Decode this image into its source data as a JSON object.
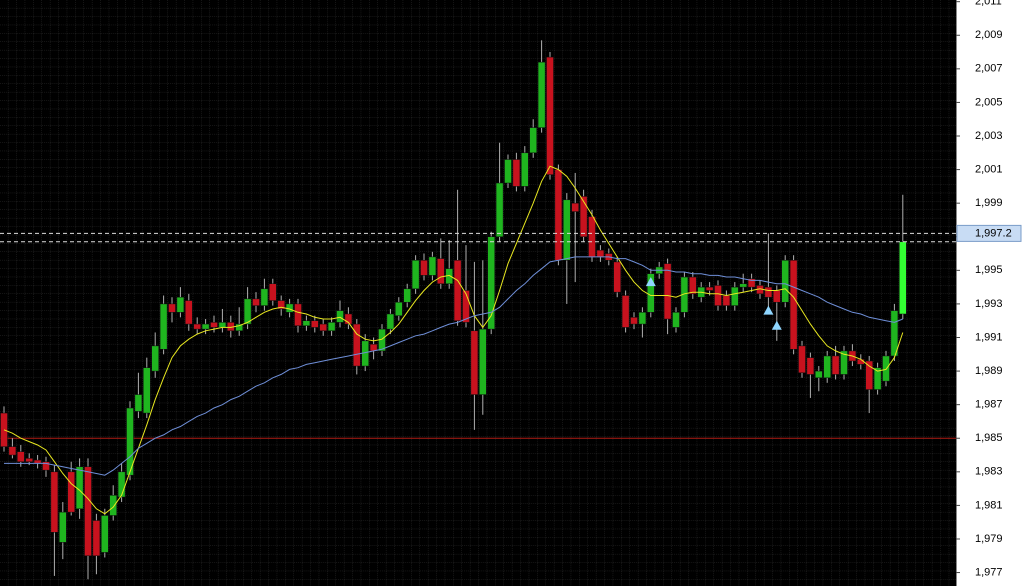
{
  "chart_data": {
    "type": "candlestick",
    "up_color": "#1fb51f",
    "down_color": "#c8121e",
    "last_color": "#33ff33",
    "wick_color": "#b0b0b0",
    "ylim": [
      1976.2,
      2011.1
    ],
    "yticks": [
      {
        "value": 1977,
        "label": "1,977"
      },
      {
        "value": 1979,
        "label": "1,979"
      },
      {
        "value": 1981,
        "label": "1,981"
      },
      {
        "value": 1983,
        "label": "1,983"
      },
      {
        "value": 1985,
        "label": "1,985"
      },
      {
        "value": 1987,
        "label": "1,987"
      },
      {
        "value": 1989,
        "label": "1,989"
      },
      {
        "value": 1991,
        "label": "1,991"
      },
      {
        "value": 1993,
        "label": "1,993"
      },
      {
        "value": 1995,
        "label": "1,995"
      },
      {
        "value": 1997,
        "label": "1,997"
      },
      {
        "value": 1999,
        "label": "1,999"
      },
      {
        "value": 2001,
        "label": "2,001"
      },
      {
        "value": 2003,
        "label": "2,003"
      },
      {
        "value": 2005,
        "label": "2,005"
      },
      {
        "value": 2007,
        "label": "2,007"
      },
      {
        "value": 2009,
        "label": "2,009"
      },
      {
        "value": 2011,
        "label": "2,011"
      }
    ],
    "open": [
      1986.5,
      1984.5,
      1984.2,
      1983.8,
      1983.7,
      1983.6,
      1983.0,
      1978.8,
      1983.0,
      1980.8,
      1983.3,
      1980.1,
      1978.2,
      1980.4,
      1981.5,
      1982.8,
      1986.6,
      1986.5,
      1989.0,
      1990.3,
      1993.0,
      1992.5,
      1993.2,
      1991.8,
      1991.5,
      1991.9,
      1991.6,
      1991.9,
      1991.4,
      1991.8,
      1993.3,
      1992.9,
      1994.2,
      1993.2,
      1992.5,
      1993.0,
      1991.7,
      1992.0,
      1991.8,
      1991.4,
      1991.9,
      1992.4,
      1991.8,
      1989.3,
      1990.6,
      1990.2,
      1991.5,
      1992.3,
      1993.1,
      1993.9,
      1995.6,
      1994.7,
      1995.7,
      1994.2,
      1995.6,
      1993.8,
      1991.4,
      1987.6,
      1991.5,
      1997.0,
      2000.2,
      2001.6,
      2000.0,
      2002.0,
      2003.5,
      2007.7,
      2001.0,
      1995.6,
      1999.0,
      1999.4,
      1998.2,
      1996.2,
      1996.0,
      1995.5,
      1993.5,
      1992.2,
      1991.8,
      1992.5,
      1994.8,
      1995.4,
      1991.6,
      1992.5,
      1994.6,
      1993.4,
      1994.0,
      1994.1,
      1993.5,
      1992.9,
      1994.0,
      1994.5,
      1994.1,
      1994.0,
      1993.8,
      1993.1,
      1995.6,
      1990.5,
      1989.8,
      1988.6,
      1988.6,
      1989.9,
      1988.8,
      1990.2,
      1989.7,
      1989.6,
      1987.9,
      1988.4,
      1989.9,
      1992.4
    ],
    "high": [
      1986.9,
      1985.0,
      1984.6,
      1984.1,
      1984.0,
      1983.9,
      1983.4,
      1981.2,
      1983.6,
      1983.8,
      1983.8,
      1980.5,
      1980.8,
      1982.2,
      1983.5,
      1987.2,
      1988.9,
      1989.8,
      1991.3,
      1993.5,
      1993.4,
      1994.0,
      1993.6,
      1992.2,
      1992.1,
      1992.3,
      1992.7,
      1992.3,
      1992.8,
      1994.0,
      1993.7,
      1994.5,
      1994.5,
      1993.5,
      1993.3,
      1993.3,
      1992.3,
      1992.3,
      1992.1,
      1992.2,
      1993.2,
      1992.8,
      1992.1,
      1991.2,
      1991.0,
      1991.8,
      1992.7,
      1993.4,
      1994.2,
      1995.9,
      1996.0,
      1996.1,
      1996.9,
      1996.8,
      1999.8,
      1996.5,
      1995.5,
      1995.6,
      1997.3,
      2002.6,
      2001.9,
      2002.0,
      2002.4,
      2004.0,
      2008.7,
      2008.0,
      2001.3,
      1999.6,
      2000.8,
      1999.8,
      1998.6,
      1996.5,
      1996.3,
      1995.8,
      1993.8,
      1992.5,
      1992.8,
      1995.1,
      1995.5,
      1995.7,
      1992.8,
      1994.9,
      1994.9,
      1994.3,
      1994.3,
      1994.4,
      1993.8,
      1994.3,
      1994.8,
      1994.8,
      1994.4,
      1997.2,
      1994.1,
      1995.9,
      1995.9,
      1990.8,
      1990.1,
      1989.3,
      1990.2,
      1990.5,
      1990.5,
      1990.6,
      1990.0,
      1989.9,
      1989.5,
      1990.2,
      1993.0,
      1999.5
    ],
    "low": [
      1984.2,
      1983.8,
      1983.3,
      1983.4,
      1983.2,
      1982.7,
      1976.8,
      1977.8,
      1980.4,
      1980.2,
      1976.6,
      1976.9,
      1977.9,
      1980.1,
      1981.2,
      1982.5,
      1986.2,
      1986.2,
      1988.6,
      1990.0,
      1991.9,
      1992.2,
      1991.4,
      1991.2,
      1991.2,
      1991.3,
      1991.3,
      1991.0,
      1991.1,
      1991.5,
      1992.5,
      1992.6,
      1992.9,
      1992.3,
      1992.2,
      1991.3,
      1991.4,
      1991.3,
      1991.1,
      1991.1,
      1991.6,
      1991.5,
      1988.8,
      1989.0,
      1989.7,
      1989.9,
      1991.2,
      1992.0,
      1992.8,
      1993.6,
      1994.4,
      1994.4,
      1993.9,
      1993.9,
      1991.7,
      1991.6,
      1985.5,
      1986.4,
      1991.2,
      1996.7,
      1999.9,
      1999.7,
      1999.7,
      2001.7,
      2003.2,
      2000.4,
      1995.3,
      1993.0,
      1994.3,
      1996.7,
      1995.5,
      1995.5,
      1995.3,
      1993.4,
      1991.3,
      1991.5,
      1991.0,
      1992.2,
      1994.5,
      1991.2,
      1991.3,
      1992.2,
      1993.3,
      1993.1,
      1993.5,
      1992.6,
      1992.6,
      1992.6,
      1993.7,
      1993.7,
      1993.3,
      1992.7,
      1990.8,
      1992.8,
      1990.0,
      1988.6,
      1987.4,
      1987.8,
      1988.3,
      1988.5,
      1988.5,
      1989.3,
      1989.1,
      1986.5,
      1987.6,
      1988.1,
      1989.6,
      1992.1
    ],
    "close": [
      1984.5,
      1984.0,
      1983.6,
      1983.6,
      1983.5,
      1983.1,
      1979.4,
      1980.6,
      1980.6,
      1983.3,
      1978.0,
      1978.0,
      1980.4,
      1981.6,
      1983.0,
      1986.8,
      1987.6,
      1989.2,
      1990.5,
      1993.0,
      1992.5,
      1993.4,
      1991.8,
      1991.5,
      1991.8,
      1991.6,
      1991.9,
      1991.4,
      1991.8,
      1993.3,
      1992.9,
      1993.9,
      1993.2,
      1992.7,
      1993.0,
      1991.7,
      1992.0,
      1991.6,
      1991.4,
      1991.9,
      1992.6,
      1991.8,
      1989.3,
      1990.8,
      1990.2,
      1991.5,
      1992.4,
      1993.1,
      1993.9,
      1995.6,
      1994.7,
      1995.8,
      1994.2,
      1995.1,
      1992.0,
      1991.9,
      1987.6,
      1991.5,
      1997.0,
      2000.2,
      2001.6,
      2000.0,
      2002.0,
      2003.5,
      2007.4,
      2000.7,
      1995.6,
      1999.2,
      1998.5,
      1997.0,
      1995.8,
      1995.8,
      1995.6,
      1993.7,
      1991.6,
      1991.8,
      1992.5,
      1994.8,
      1995.2,
      1992.1,
      1992.5,
      1994.6,
      1993.6,
      1994.0,
      1993.8,
      1992.9,
      1992.9,
      1994.0,
      1994.2,
      1994.0,
      1993.6,
      1993.4,
      1993.1,
      1995.6,
      1990.3,
      1988.9,
      1988.8,
      1989.0,
      1989.9,
      1988.8,
      1990.2,
      1989.6,
      1989.4,
      1987.9,
      1989.2,
      1989.9,
      1992.6,
      1996.7
    ],
    "moving_averages": [
      {
        "color": "#e8e820",
        "values": [
          1985.5,
          1985.3,
          1985.0,
          1984.8,
          1984.6,
          1984.3,
          1983.6,
          1982.9,
          1982.3,
          1981.9,
          1981.4,
          1980.8,
          1980.5,
          1980.9,
          1981.6,
          1983.0,
          1984.4,
          1985.8,
          1987.3,
          1988.6,
          1989.8,
          1990.5,
          1990.9,
          1991.2,
          1991.4,
          1991.5,
          1991.6,
          1991.6,
          1991.7,
          1991.9,
          1992.2,
          1992.5,
          1992.7,
          1992.8,
          1992.7,
          1992.5,
          1992.4,
          1992.2,
          1992.1,
          1992.1,
          1992.2,
          1991.9,
          1991.2,
          1990.9,
          1990.8,
          1990.9,
          1991.3,
          1991.8,
          1992.5,
          1993.2,
          1993.8,
          1994.3,
          1994.6,
          1994.7,
          1994.4,
          1993.6,
          1992.3,
          1991.6,
          1992.3,
          1993.8,
          1995.4,
          1996.6,
          1997.8,
          1999.0,
          2000.3,
          2001.2,
          2001.0,
          2000.6,
          1999.9,
          1999.1,
          1998.3,
          1997.4,
          1996.6,
          1995.8,
          1995.0,
          1994.3,
          1993.8,
          1993.5,
          1993.5,
          1993.5,
          1993.4,
          1993.6,
          1993.7,
          1993.7,
          1993.6,
          1993.6,
          1993.5,
          1993.6,
          1993.7,
          1993.8,
          1993.9,
          1993.8,
          1993.8,
          1993.9,
          1993.4,
          1992.6,
          1991.8,
          1991.1,
          1990.5,
          1990.2,
          1990.0,
          1989.9,
          1989.7,
          1989.3,
          1989.0,
          1989.1,
          1989.8,
          1991.3
        ]
      },
      {
        "color": "#6f8fd8",
        "values": [
          1983.5,
          1983.5,
          1983.5,
          1983.5,
          1983.5,
          1983.5,
          1983.4,
          1983.3,
          1983.2,
          1983.1,
          1983.0,
          1982.9,
          1982.8,
          1983.1,
          1983.5,
          1983.9,
          1984.4,
          1984.7,
          1985.0,
          1985.2,
          1985.5,
          1985.7,
          1986.0,
          1986.3,
          1986.5,
          1986.8,
          1987.0,
          1987.3,
          1987.5,
          1987.8,
          1988.1,
          1988.3,
          1988.6,
          1988.8,
          1989.1,
          1989.2,
          1989.4,
          1989.5,
          1989.6,
          1989.7,
          1989.8,
          1989.9,
          1990.0,
          1990.1,
          1990.2,
          1990.3,
          1990.5,
          1990.7,
          1990.9,
          1991.1,
          1991.2,
          1991.4,
          1991.6,
          1991.8,
          1991.9,
          1992.1,
          1992.3,
          1992.4,
          1992.5,
          1992.8,
          1993.3,
          1993.8,
          1994.2,
          1994.7,
          1995.1,
          1995.5,
          1995.6,
          1995.7,
          1995.8,
          1995.8,
          1995.8,
          1995.8,
          1995.8,
          1995.7,
          1995.7,
          1995.5,
          1995.3,
          1995.0,
          1995.0,
          1995.0,
          1994.9,
          1994.9,
          1994.8,
          1994.8,
          1994.7,
          1994.7,
          1994.6,
          1994.6,
          1994.5,
          1994.4,
          1994.4,
          1994.3,
          1994.2,
          1994.2,
          1994.0,
          1993.8,
          1993.6,
          1993.4,
          1993.1,
          1992.9,
          1992.7,
          1992.5,
          1992.4,
          1992.2,
          1992.1,
          1992.0,
          1991.9,
          1992.1
        ]
      }
    ],
    "markers": {
      "color": "#8fd6ff",
      "x": [
        77,
        91,
        92
      ],
      "values": [
        1994.3,
        1992.6,
        1991.7
      ]
    },
    "level_line": {
      "value": 1985,
      "color": "#b01c14"
    },
    "price_lines": [
      {
        "value": 1997.2,
        "label": "1,997.2"
      },
      {
        "value": 1996.7
      }
    ]
  }
}
